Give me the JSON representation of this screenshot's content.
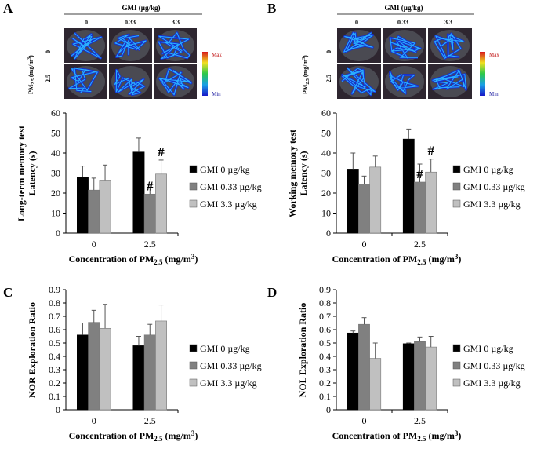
{
  "panel_letters": [
    "A",
    "B",
    "C",
    "D"
  ],
  "heatmap_header": {
    "group_title": "GMI (µg/kg)",
    "doses": [
      "0",
      "0.33",
      "3.3"
    ],
    "row_axis_main": "PM",
    "row_axis_sub": "2.5",
    "row_axis_rest": " (mg/m",
    "row_axis_sup": "3",
    "row_axis_close": ")",
    "rows": [
      "0",
      "2.5"
    ],
    "colorbar_max": "Max",
    "colorbar_min": "Min"
  },
  "colors": {
    "gmi_0": "#000000",
    "gmi_033": "#808080",
    "gmi_33": "#c0c0c0",
    "colorbar": [
      "#d7191c",
      "#f0e020",
      "#2cc84a",
      "#1a9fe6",
      "#1818c8"
    ],
    "arena_bg": "#1a1a2e"
  },
  "legend": [
    "GMI 0 µg/kg",
    "GMI 0.33 µg/kg",
    "GMI 3.3 µg/kg"
  ],
  "xlabel": {
    "main": "Concentration of PM",
    "sub": "2.5",
    "rest": " (mg/m",
    "sup": "3",
    "close": ")"
  },
  "significance_mark": "#",
  "chart_data": [
    {
      "panel": "A",
      "type": "bar",
      "title": "",
      "ylabel_lines": [
        "Long-term memory test",
        "Latency (s)"
      ],
      "categories": [
        "0",
        "2.5"
      ],
      "ylim": [
        0,
        60
      ],
      "yticks": [
        "0",
        "10",
        "20",
        "30",
        "40",
        "50",
        "60"
      ],
      "series": [
        {
          "name": "GMI 0 µg/kg",
          "values": [
            28,
            40.5
          ],
          "errors": [
            5.5,
            7
          ]
        },
        {
          "name": "GMI 0.33 µg/kg",
          "values": [
            21.5,
            19.5
          ],
          "errors": [
            6,
            4.5
          ]
        },
        {
          "name": "GMI 3.3 µg/kg",
          "values": [
            26.5,
            29.5
          ],
          "errors": [
            7.5,
            7
          ]
        }
      ],
      "significance": [
        {
          "category": "2.5",
          "series": 1
        },
        {
          "category": "2.5",
          "series": 2
        }
      ]
    },
    {
      "panel": "B",
      "type": "bar",
      "title": "",
      "ylabel_lines": [
        "Working memory test",
        "Latency (s)"
      ],
      "categories": [
        "0",
        "2.5"
      ],
      "ylim": [
        0,
        60
      ],
      "yticks": [
        "0",
        "10",
        "20",
        "30",
        "40",
        "50",
        "60"
      ],
      "series": [
        {
          "name": "GMI 0 µg/kg",
          "values": [
            32,
            47
          ],
          "errors": [
            8,
            5
          ]
        },
        {
          "name": "GMI 0.33 µg/kg",
          "values": [
            24.5,
            25.5
          ],
          "errors": [
            4,
            9
          ]
        },
        {
          "name": "GMI 3.3 µg/kg",
          "values": [
            33,
            30.5
          ],
          "errors": [
            5.5,
            6.5
          ]
        }
      ],
      "significance": [
        {
          "category": "2.5",
          "series": 1
        },
        {
          "category": "2.5",
          "series": 2
        }
      ]
    },
    {
      "panel": "C",
      "type": "bar",
      "title": "",
      "ylabel_lines": [
        "NOR Exploration Ratio"
      ],
      "categories": [
        "0",
        "2.5"
      ],
      "ylim": [
        0,
        0.9
      ],
      "yticks": [
        "0",
        "0.1",
        "0.2",
        "0.3",
        "0.4",
        "0.5",
        "0.6",
        "0.7",
        "0.8",
        "0.9"
      ],
      "series": [
        {
          "name": "GMI 0 µg/kg",
          "values": [
            0.56,
            0.48
          ],
          "errors": [
            0.09,
            0.07
          ]
        },
        {
          "name": "GMI 0.33 µg/kg",
          "values": [
            0.655,
            0.56
          ],
          "errors": [
            0.09,
            0.08
          ]
        },
        {
          "name": "GMI 3.3 µg/kg",
          "values": [
            0.61,
            0.665
          ],
          "errors": [
            0.18,
            0.12
          ]
        }
      ],
      "significance": []
    },
    {
      "panel": "D",
      "type": "bar",
      "title": "",
      "ylabel_lines": [
        "NOL Exploration Ratio"
      ],
      "categories": [
        "0",
        "2.5"
      ],
      "ylim": [
        0,
        0.9
      ],
      "yticks": [
        "0",
        "0.1",
        "0.2",
        "0.3",
        "0.4",
        "0.5",
        "0.6",
        "0.7",
        "0.8",
        "0.9"
      ],
      "series": [
        {
          "name": "GMI 0 µg/kg",
          "values": [
            0.575,
            0.495
          ],
          "errors": [
            0.015,
            0.005
          ]
        },
        {
          "name": "GMI 0.33 µg/kg",
          "values": [
            0.64,
            0.51
          ],
          "errors": [
            0.05,
            0.035
          ]
        },
        {
          "name": "GMI 3.3 µg/kg",
          "values": [
            0.385,
            0.47
          ],
          "errors": [
            0.115,
            0.08
          ]
        }
      ],
      "significance": []
    }
  ]
}
